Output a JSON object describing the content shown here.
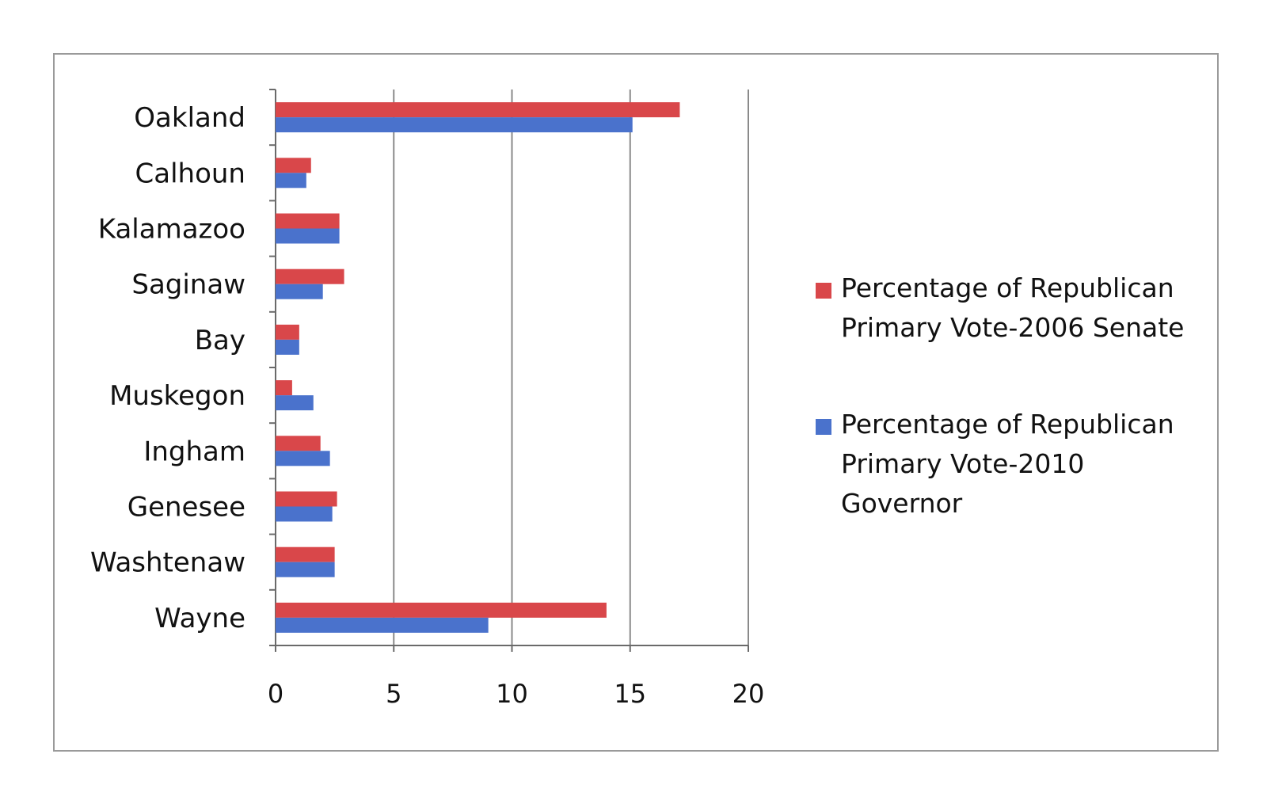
{
  "chart_data": {
    "type": "bar",
    "orientation": "horizontal",
    "title": "",
    "xlabel": "",
    "ylabel": "",
    "categories": [
      "Oakland",
      "Calhoun",
      "Kalamazoo",
      "Saginaw",
      "Bay",
      "Muskegon",
      "Ingham",
      "Genesee",
      "Washtenaw",
      "Wayne"
    ],
    "series": [
      {
        "name": "Percentage of Republican Primary Vote-2006 Senate",
        "legend_lines": [
          "Percentage of Republican",
          "Primary Vote-2006 Senate"
        ],
        "color": "#d9474a",
        "values": [
          17.1,
          1.5,
          2.7,
          2.9,
          1.0,
          0.7,
          1.9,
          2.6,
          2.5,
          14.0
        ]
      },
      {
        "name": "Percentage of Republican Primary Vote-2010 Governor",
        "legend_lines": [
          "Percentage of Republican",
          "Primary Vote-2010",
          "Governor"
        ],
        "color": "#4a72cc",
        "values": [
          15.1,
          1.3,
          2.7,
          2.0,
          1.0,
          1.6,
          2.3,
          2.4,
          2.5,
          9.0
        ]
      }
    ],
    "xlim": [
      0,
      20
    ],
    "xticks": [
      "0",
      "5",
      "10",
      "15",
      "20"
    ],
    "grid": true,
    "legend_position": "right"
  }
}
